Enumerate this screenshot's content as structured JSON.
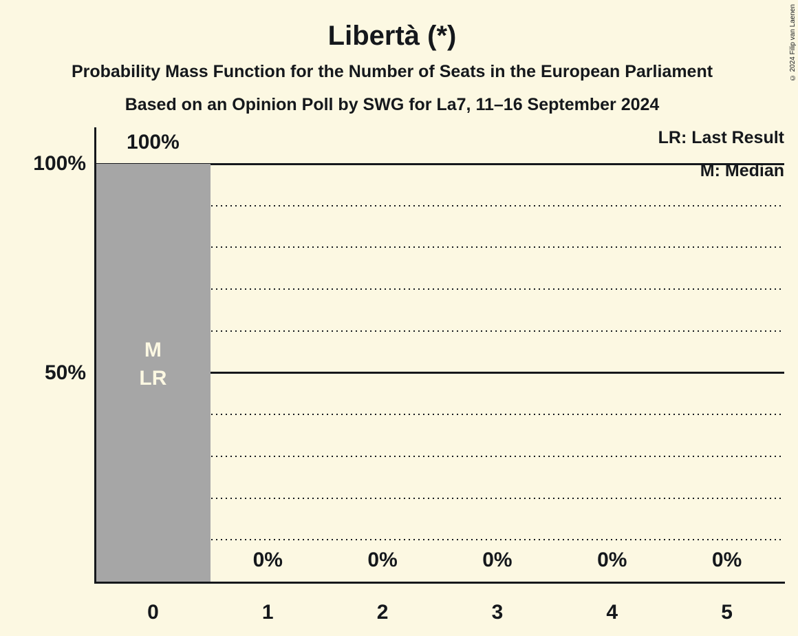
{
  "title": "Libertà (*)",
  "subtitles": [
    "Probability Mass Function for the Number of Seats in the European Parliament",
    "Based on an Opinion Poll by SWG for La7, 11–16 September 2024"
  ],
  "copyright": "© 2024 Filip van Laenen",
  "legend": {
    "lr": "LR: Last Result",
    "m": "M: Median"
  },
  "colors": {
    "background": "#FCF8E2",
    "bar": "#A6A6A6",
    "text": "#15181C",
    "bar_annotation_text": "#FCF8E2"
  },
  "chart_data": {
    "type": "bar",
    "title": "Libertà (*)",
    "subtitle": "Probability Mass Function for the Number of Seats in the European Parliament",
    "source_line": "Based on an Opinion Poll by SWG for La7, 11–16 September 2024",
    "categories": [
      "0",
      "1",
      "2",
      "3",
      "4",
      "5"
    ],
    "values": [
      100,
      0,
      0,
      0,
      0,
      0
    ],
    "value_labels": [
      "100%",
      "0%",
      "0%",
      "0%",
      "0%",
      "0%"
    ],
    "ylim": [
      0,
      100
    ],
    "y_axis_ticks": [
      {
        "value": 100,
        "label": "100%"
      },
      {
        "value": 50,
        "label": "50%"
      }
    ],
    "gridlines_solid": [
      100,
      50
    ],
    "gridlines_dotted": [
      90,
      80,
      70,
      60,
      40,
      30,
      20,
      10
    ],
    "grid": true,
    "legend_position": "top-right",
    "legend_entries": [
      "LR: Last Result",
      "M: Median"
    ],
    "bar_annotations": [
      {
        "category": "0",
        "lines": [
          "M",
          "LR"
        ]
      }
    ]
  }
}
